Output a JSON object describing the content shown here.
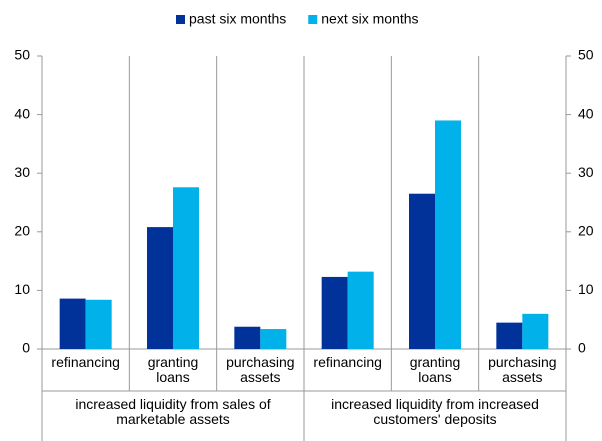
{
  "chart_data": {
    "type": "bar",
    "categories": [
      "refinancing",
      "granting loans",
      "purchasing assets",
      "refinancing",
      "granting loans",
      "purchasing assets"
    ],
    "groups": [
      "increased liquidity from sales of marketable assets",
      "increased liquidity from increased customers' deposits"
    ],
    "series": [
      {
        "name": "past six months",
        "color": "#003299",
        "values": [
          8.6,
          20.8,
          3.8,
          12.3,
          26.5,
          4.5
        ]
      },
      {
        "name": "next six months",
        "color": "#00b1ea",
        "values": [
          8.4,
          27.6,
          3.4,
          13.2,
          39.0,
          6.0
        ]
      }
    ],
    "ylim": [
      0,
      50
    ],
    "yticks": [
      0,
      10,
      20,
      30,
      40,
      50
    ],
    "y2lim": [
      0,
      50
    ],
    "y2ticks": [
      0,
      10,
      20,
      30,
      40,
      50
    ],
    "legend": "top"
  }
}
